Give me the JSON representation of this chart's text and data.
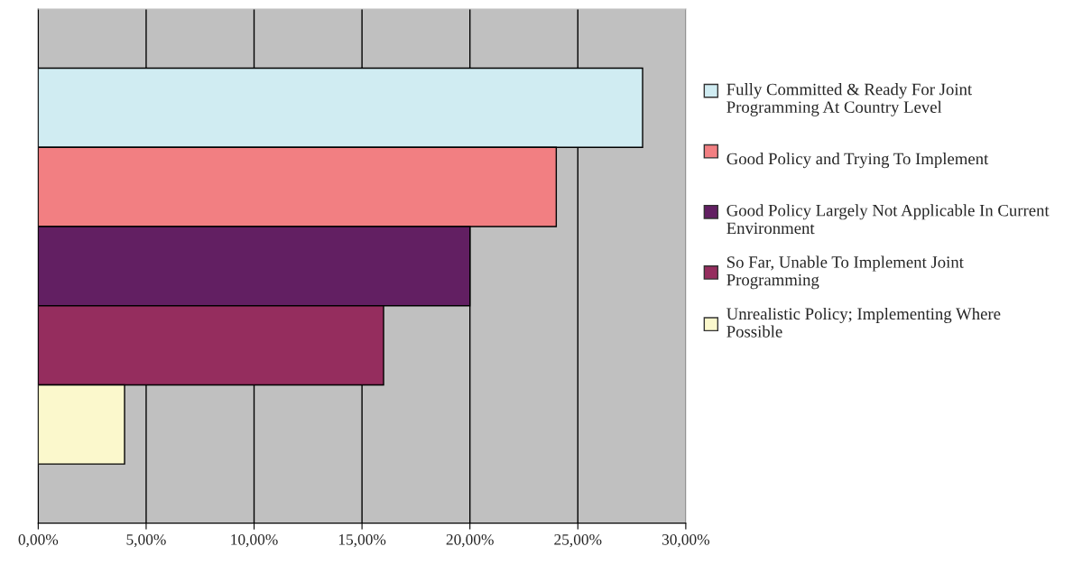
{
  "chart_data": {
    "type": "bar",
    "orientation": "horizontal",
    "categories": [
      null
    ],
    "series": [
      {
        "name": "Fully Committed & Ready For Joint Programming At Country Level",
        "color": "#d0ecf2",
        "values": [
          28
        ]
      },
      {
        "name": "Good Policy and Trying To Implement",
        "color": "#f27f82",
        "values": [
          24
        ]
      },
      {
        "name": "Good Policy Largely Not Applicable In Current Environment",
        "color": "#621f62",
        "values": [
          20
        ]
      },
      {
        "name": "So Far, Unable To Implement Joint Programming",
        "color": "#952d5e",
        "values": [
          16
        ]
      },
      {
        "name": "Unrealistic Policy; Implementing Where Possible",
        "color": "#fbf8cc",
        "values": [
          4
        ]
      }
    ],
    "xlim": [
      0,
      30
    ],
    "xticks": [
      {
        "value": 0,
        "label": "0,00%"
      },
      {
        "value": 5,
        "label": "5,00%"
      },
      {
        "value": 10,
        "label": "10,00%"
      },
      {
        "value": 15,
        "label": "15,00%"
      },
      {
        "value": 20,
        "label": "20,00%"
      },
      {
        "value": 25,
        "label": "25,00%"
      },
      {
        "value": 30,
        "label": "30,00%"
      }
    ],
    "grid": "x",
    "legend": "right"
  }
}
